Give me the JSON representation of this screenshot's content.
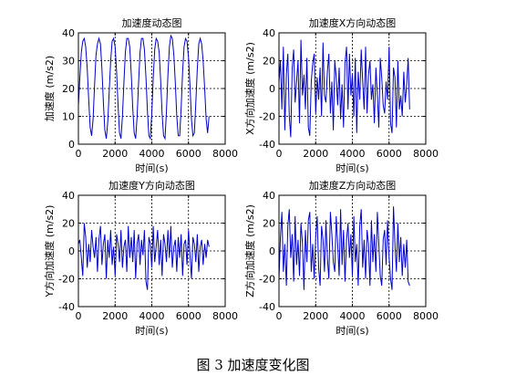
{
  "figure": {
    "caption": "图 3  加速度变化图"
  },
  "chart_data": [
    {
      "type": "line",
      "title": "加速度动态图",
      "xlabel": "时间(s)",
      "ylabel": "加速度 (m/s2)",
      "xlim": [
        0,
        8000
      ],
      "ylim": [
        0,
        40
      ],
      "xticks": [
        0,
        2000,
        4000,
        6000,
        8000
      ],
      "yticks": [
        0,
        10,
        20,
        30,
        40
      ],
      "grid": true,
      "line_color": "#0000cc",
      "series": [
        {
          "x": [
            0,
            80,
            160,
            240,
            320,
            400,
            480,
            560,
            640,
            720,
            800,
            880,
            960,
            1040,
            1120,
            1200,
            1280,
            1360,
            1440,
            1520,
            1600,
            1680,
            1760,
            1840,
            1920,
            2000,
            2080,
            2160,
            2240,
            2320,
            2400,
            2480,
            2560,
            2640,
            2720,
            2800,
            2880,
            2960,
            3040,
            3120,
            3200,
            3280,
            3360,
            3440,
            3520,
            3600,
            3680,
            3760,
            3840,
            3920,
            4000,
            4080,
            4160,
            4240,
            4320,
            4400,
            4480,
            4560,
            4640,
            4720,
            4800,
            4880,
            4960,
            5040,
            5120,
            5200,
            5280,
            5360,
            5440,
            5520,
            5600,
            5680,
            5760,
            5840,
            5920,
            6000,
            6080,
            6160,
            6240,
            6320,
            6400,
            6480,
            6560,
            6640,
            6720,
            6800,
            6880,
            6960,
            7040,
            7120
          ],
          "y": [
            14,
            24,
            33,
            37,
            38,
            35,
            27,
            16,
            6,
            3,
            9,
            21,
            32,
            36,
            38,
            36,
            27,
            15,
            5,
            2,
            8,
            19,
            30,
            37,
            38,
            35,
            26,
            14,
            4,
            2,
            10,
            22,
            33,
            38,
            38,
            35,
            25,
            13,
            4,
            2,
            10,
            22,
            33,
            38,
            38,
            34,
            24,
            12,
            3,
            2,
            11,
            24,
            34,
            38,
            37,
            33,
            23,
            11,
            3,
            2,
            12,
            25,
            35,
            39,
            38,
            32,
            22,
            10,
            3,
            3,
            13,
            26,
            35,
            38,
            37,
            31,
            21,
            9,
            3,
            4,
            15,
            27,
            36,
            38,
            36,
            30,
            20,
            9,
            4,
            10
          ]
        }
      ]
    },
    {
      "type": "line",
      "title": "加速度X方向动态图",
      "xlabel": "时间(s)",
      "ylabel": "X方向加速度 (m/s2)",
      "xlim": [
        0,
        8000
      ],
      "ylim": [
        -40,
        40
      ],
      "xticks": [
        0,
        2000,
        4000,
        6000,
        8000
      ],
      "yticks": [
        -40,
        -20,
        0,
        20,
        40
      ],
      "grid": true,
      "line_color": "#0000cc",
      "series": [
        {
          "x": [
            0,
            80,
            160,
            240,
            320,
            400,
            480,
            560,
            640,
            720,
            800,
            880,
            960,
            1040,
            1120,
            1200,
            1280,
            1360,
            1440,
            1520,
            1600,
            1680,
            1760,
            1840,
            1920,
            2000,
            2080,
            2160,
            2240,
            2320,
            2400,
            2480,
            2560,
            2640,
            2720,
            2800,
            2880,
            2960,
            3040,
            3120,
            3200,
            3280,
            3360,
            3440,
            3520,
            3600,
            3680,
            3760,
            3840,
            3920,
            4000,
            4080,
            4160,
            4240,
            4320,
            4400,
            4480,
            4560,
            4640,
            4720,
            4800,
            4880,
            4960,
            5040,
            5120,
            5200,
            5280,
            5360,
            5440,
            5520,
            5600,
            5680,
            5760,
            5840,
            5920,
            6000,
            6080,
            6160,
            6240,
            6320,
            6400,
            6480,
            6560,
            6640,
            6720,
            6800,
            6880,
            6960,
            7040,
            7120
          ],
          "y": [
            5,
            20,
            -15,
            30,
            -30,
            10,
            25,
            -20,
            -35,
            15,
            28,
            -10,
            5,
            20,
            -25,
            35,
            -5,
            10,
            -15,
            22,
            -28,
            -34,
            5,
            18,
            25,
            -18,
            8,
            -8,
            15,
            -20,
            33,
            -5,
            -10,
            12,
            25,
            -18,
            5,
            -30,
            20,
            8,
            -12,
            15,
            -22,
            3,
            -28,
            18,
            30,
            -15,
            25,
            -5,
            10,
            -20,
            22,
            -32,
            12,
            -8,
            28,
            5,
            -15,
            30,
            -18,
            10,
            20,
            -8,
            3,
            -25,
            15,
            -5,
            -28,
            22,
            8,
            -12,
            -18,
            5,
            -8,
            30,
            -25,
            -32,
            15,
            8,
            -28,
            20,
            -15,
            -5,
            -20,
            12,
            -10,
            3,
            22,
            -15
          ]
        }
      ]
    },
    {
      "type": "line",
      "title": "加速度Y方向动态图",
      "xlabel": "时间(s)",
      "ylabel": "Y方向加速度 (m/s2)",
      "xlim": [
        0,
        8000
      ],
      "ylim": [
        -40,
        40
      ],
      "xticks": [
        0,
        2000,
        4000,
        6000,
        8000
      ],
      "yticks": [
        -40,
        -20,
        0,
        20,
        40
      ],
      "grid": true,
      "line_color": "#0000cc",
      "series": [
        {
          "x": [
            0,
            80,
            160,
            240,
            320,
            400,
            480,
            560,
            640,
            720,
            800,
            880,
            960,
            1040,
            1120,
            1200,
            1280,
            1360,
            1440,
            1520,
            1600,
            1680,
            1760,
            1840,
            1920,
            2000,
            2080,
            2160,
            2240,
            2320,
            2400,
            2480,
            2560,
            2640,
            2720,
            2800,
            2880,
            2960,
            3040,
            3120,
            3200,
            3280,
            3360,
            3440,
            3520,
            3600,
            3680,
            3760,
            3840,
            3920,
            4000,
            4080,
            4160,
            4240,
            4320,
            4400,
            4480,
            4560,
            4640,
            4720,
            4800,
            4880,
            4960,
            5040,
            5120,
            5200,
            5280,
            5360,
            5440,
            5520,
            5600,
            5680,
            5760,
            5840,
            5920,
            6000,
            6080,
            6160,
            6240,
            6320,
            6400,
            6480,
            6560,
            6640,
            6720,
            6800,
            6880,
            6960,
            7040,
            7120
          ],
          "y": [
            5,
            8,
            -5,
            -18,
            20,
            10,
            -12,
            5,
            -8,
            15,
            3,
            -5,
            10,
            -15,
            8,
            18,
            -10,
            5,
            12,
            -20,
            8,
            -5,
            15,
            -10,
            3,
            -18,
            12,
            5,
            -8,
            15,
            -12,
            3,
            8,
            -15,
            18,
            -5,
            10,
            -8,
            15,
            -20,
            5,
            12,
            -10,
            8,
            -3,
            15,
            -22,
            -28,
            10,
            5,
            -12,
            18,
            -8,
            3,
            15,
            -10,
            8,
            -18,
            12,
            5,
            -8,
            15,
            -5,
            18,
            -12,
            3,
            8,
            -15,
            10,
            -5,
            12,
            -18,
            5,
            8,
            -10,
            15,
            -3,
            -20,
            10,
            5,
            -8,
            12,
            -15,
            3,
            8,
            -10,
            5,
            -5,
            8,
            3
          ]
        }
      ]
    },
    {
      "type": "line",
      "title": "加速度Z方向动态图",
      "xlabel": "时间(s)",
      "ylabel": "Z方向加速度 (m/s2)",
      "xlim": [
        0,
        8000
      ],
      "ylim": [
        -40,
        40
      ],
      "xticks": [
        0,
        2000,
        4000,
        6000,
        8000
      ],
      "yticks": [
        -40,
        -20,
        0,
        20,
        40
      ],
      "grid": true,
      "line_color": "#0000cc",
      "series": [
        {
          "x": [
            0,
            80,
            160,
            240,
            320,
            400,
            480,
            560,
            640,
            720,
            800,
            880,
            960,
            1040,
            1120,
            1200,
            1280,
            1360,
            1440,
            1520,
            1600,
            1680,
            1760,
            1840,
            1920,
            2000,
            2080,
            2160,
            2240,
            2320,
            2400,
            2480,
            2560,
            2640,
            2720,
            2800,
            2880,
            2960,
            3040,
            3120,
            3200,
            3280,
            3360,
            3440,
            3520,
            3600,
            3680,
            3760,
            3840,
            3920,
            4000,
            4080,
            4160,
            4240,
            4320,
            4400,
            4480,
            4560,
            4640,
            4720,
            4800,
            4880,
            4960,
            5040,
            5120,
            5200,
            5280,
            5360,
            5440,
            5520,
            5600,
            5680,
            5760,
            5840,
            5920,
            6000,
            6080,
            6160,
            6240,
            6320,
            6400,
            6480,
            6560,
            6640,
            6720,
            6800,
            6880,
            6960,
            7040,
            7120
          ],
          "y": [
            -20,
            10,
            28,
            -15,
            5,
            -25,
            18,
            30,
            -5,
            12,
            -22,
            25,
            -10,
            8,
            -18,
            20,
            5,
            -28,
            15,
            -8,
            22,
            28,
            -15,
            5,
            -20,
            10,
            25,
            -12,
            -25,
            18,
            8,
            -15,
            22,
            -5,
            -20,
            28,
            12,
            -8,
            -15,
            25,
            5,
            -18,
            30,
            -10,
            15,
            -22,
            8,
            20,
            -5,
            12,
            -18,
            25,
            -8,
            5,
            -25,
            18,
            30,
            -12,
            8,
            -20,
            15,
            5,
            -25,
            22,
            -8,
            12,
            -15,
            28,
            5,
            -18,
            -25,
            8,
            15,
            -10,
            22,
            -5,
            -20,
            -28,
            32,
            5,
            -15,
            20,
            -8,
            10,
            -18,
            5,
            -12,
            8,
            -22,
            -25
          ]
        }
      ]
    }
  ]
}
